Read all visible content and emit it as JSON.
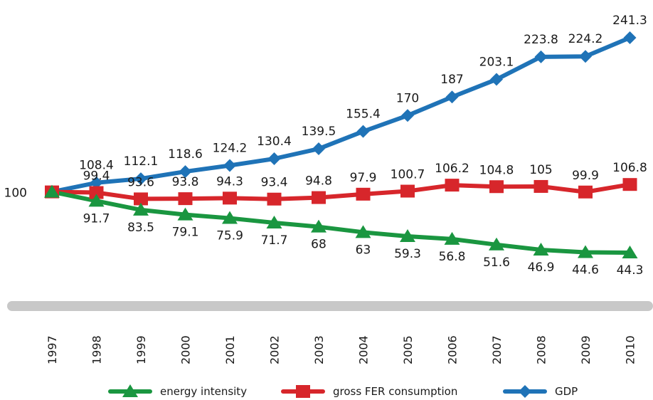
{
  "chart_data": {
    "type": "line",
    "title": "",
    "xlabel": "",
    "ylabel": "",
    "categories": [
      "1997",
      "1998",
      "1999",
      "2000",
      "2001",
      "2002",
      "2003",
      "2004",
      "2005",
      "2006",
      "2007",
      "2008",
      "2009",
      "2010"
    ],
    "ylim": [
      40,
      245
    ],
    "grid": false,
    "legend_position": "bottom",
    "start_label": "100",
    "series": [
      {
        "name": "energy intensity",
        "color": "#1a9640",
        "marker": "triangle",
        "values": [
          100,
          91.7,
          83.5,
          79.1,
          75.9,
          71.7,
          68,
          63,
          59.3,
          56.8,
          51.6,
          46.9,
          44.6,
          44.3
        ],
        "labels": [
          "100",
          "91.7",
          "83.5",
          "79.1",
          "75.9",
          "71.7",
          "68",
          "63",
          "59.3",
          "56.8",
          "51.6",
          "46.9",
          "44.6",
          "44.3"
        ]
      },
      {
        "name": "gross FER consumption",
        "color": "#d7262b",
        "marker": "square",
        "values": [
          100,
          99.4,
          93.6,
          93.8,
          94.3,
          93.4,
          94.8,
          97.9,
          100.7,
          106.2,
          104.8,
          105,
          99.9,
          106.8
        ],
        "labels": [
          "100",
          "99.4",
          "93.6",
          "93.8",
          "94.3",
          "93.4",
          "94.8",
          "97.9",
          "100.7",
          "106.2",
          "104.8",
          "105",
          "99.9",
          "106.8"
        ]
      },
      {
        "name": "GDP",
        "color": "#1f73b7",
        "marker": "diamond",
        "values": [
          100,
          108.4,
          112.1,
          118.6,
          124.2,
          130.4,
          139.5,
          155.4,
          170,
          187,
          203.1,
          223.8,
          224.2,
          241.3
        ],
        "labels": [
          "100",
          "108.4",
          "112.1",
          "118.6",
          "124.2",
          "130.4",
          "139.5",
          "155.4",
          "170",
          "187",
          "203.1",
          "223.8",
          "224.2",
          "241.3"
        ]
      }
    ],
    "axis_bar_color": "#c8c8c8"
  }
}
